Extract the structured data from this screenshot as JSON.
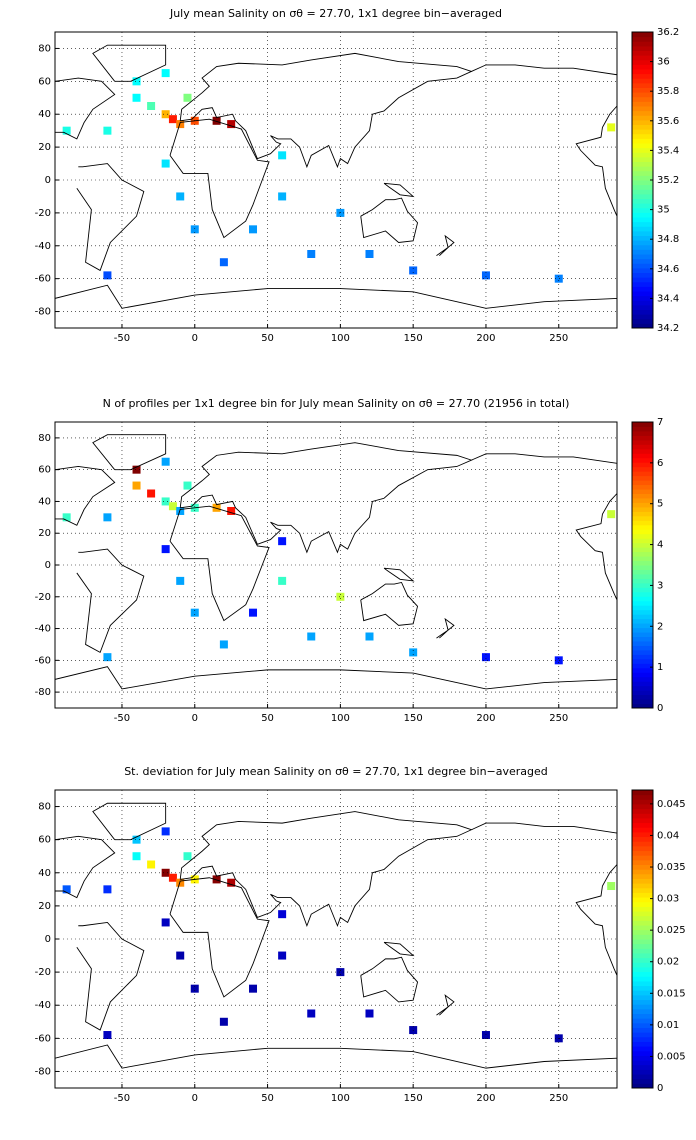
{
  "chart_data": [
    {
      "type": "heatmap",
      "title": "July mean Salinity on σθ = 27.70, 1x1 degree bin−averaged",
      "xlim": [
        -96,
        290
      ],
      "ylim": [
        -90,
        90
      ],
      "xticks": [
        -50,
        0,
        50,
        100,
        150,
        200,
        250
      ],
      "yticks": [
        -80,
        -60,
        -40,
        -20,
        0,
        20,
        40,
        60,
        80
      ],
      "grid": true,
      "colormap": "jet",
      "clim": [
        34.2,
        36.2
      ],
      "cticks": [
        34.2,
        34.4,
        34.6,
        34.8,
        35,
        35.2,
        35.4,
        35.6,
        35.8,
        36,
        36.2
      ],
      "lon": [
        -40,
        -30,
        -20,
        -15,
        -10,
        0,
        15,
        25,
        -60,
        -88,
        -40,
        -20,
        -20,
        -10,
        0,
        60,
        100,
        80,
        20,
        150,
        200,
        250,
        -60,
        286,
        60,
        40,
        120,
        -5
      ],
      "lat": [
        50,
        45,
        40,
        37,
        34,
        36,
        36,
        34,
        30,
        30,
        60,
        65,
        10,
        -10,
        -30,
        -10,
        -20,
        -45,
        -50,
        -55,
        -58,
        -60,
        -58,
        32,
        15,
        -30,
        -45,
        50
      ],
      "values": [
        34.95,
        35.1,
        35.6,
        35.9,
        35.7,
        35.8,
        36.2,
        36.1,
        35.0,
        35.0,
        34.95,
        34.95,
        34.9,
        34.8,
        34.75,
        34.8,
        34.75,
        34.7,
        34.65,
        34.65,
        34.65,
        34.7,
        34.6,
        35.4,
        34.9,
        34.75,
        34.7,
        35.2
      ]
    },
    {
      "type": "heatmap",
      "title": "N of profiles per 1x1 degree bin for July mean Salinity on σθ = 27.70 (21956 in total)",
      "xlim": [
        -96,
        290
      ],
      "ylim": [
        -90,
        90
      ],
      "xticks": [
        -50,
        0,
        50,
        100,
        150,
        200,
        250
      ],
      "yticks": [
        -80,
        -60,
        -40,
        -20,
        0,
        20,
        40,
        60,
        80
      ],
      "grid": true,
      "colormap": "jet",
      "clim": [
        0,
        7
      ],
      "cticks": [
        0,
        1,
        2,
        3,
        4,
        5,
        6,
        7
      ],
      "lon": [
        -40,
        -30,
        -20,
        -15,
        -10,
        0,
        15,
        25,
        -60,
        -88,
        -40,
        -20,
        -20,
        -10,
        0,
        60,
        100,
        80,
        20,
        150,
        200,
        250,
        -60,
        286,
        60,
        40,
        120,
        -5
      ],
      "lat": [
        50,
        45,
        40,
        37,
        34,
        36,
        36,
        34,
        30,
        30,
        60,
        65,
        10,
        -10,
        -30,
        -10,
        -20,
        -45,
        -50,
        -55,
        -58,
        -60,
        -58,
        32,
        15,
        -30,
        -45,
        50
      ],
      "values": [
        5,
        6,
        3,
        4,
        2,
        3,
        5,
        6,
        2,
        3,
        7,
        2,
        1,
        2,
        2,
        3,
        4,
        2,
        2,
        2,
        1,
        1,
        2,
        4,
        1,
        1,
        2,
        3
      ]
    },
    {
      "type": "heatmap",
      "title": "St. deviation for July mean Salinity on σθ = 27.70, 1x1 degree bin−averaged",
      "xlim": [
        -96,
        290
      ],
      "ylim": [
        -90,
        90
      ],
      "xticks": [
        -50,
        0,
        50,
        100,
        150,
        200,
        250
      ],
      "yticks": [
        -80,
        -60,
        -40,
        -20,
        0,
        20,
        40,
        60,
        80
      ],
      "grid": true,
      "colormap": "jet",
      "clim": [
        0,
        0.0472
      ],
      "cticks": [
        0,
        0.005,
        0.01,
        0.015,
        0.02,
        0.025,
        0.03,
        0.035,
        0.04,
        0.045
      ],
      "lon": [
        -40,
        -30,
        -20,
        -15,
        -10,
        0,
        15,
        25,
        -60,
        -88,
        -40,
        -20,
        -20,
        -10,
        0,
        60,
        100,
        80,
        20,
        150,
        200,
        250,
        -60,
        286,
        60,
        40,
        120,
        -5
      ],
      "lat": [
        50,
        45,
        40,
        37,
        34,
        36,
        36,
        34,
        30,
        30,
        60,
        65,
        10,
        -10,
        -30,
        -10,
        -20,
        -45,
        -50,
        -55,
        -58,
        -60,
        -58,
        32,
        15,
        -30,
        -45,
        50
      ],
      "values": [
        0.018,
        0.03,
        0.047,
        0.04,
        0.035,
        0.03,
        0.047,
        0.045,
        0.008,
        0.01,
        0.015,
        0.008,
        0.003,
        0.002,
        0.002,
        0.003,
        0.002,
        0.003,
        0.002,
        0.002,
        0.002,
        0.002,
        0.003,
        0.025,
        0.004,
        0.002,
        0.003,
        0.02
      ]
    }
  ]
}
